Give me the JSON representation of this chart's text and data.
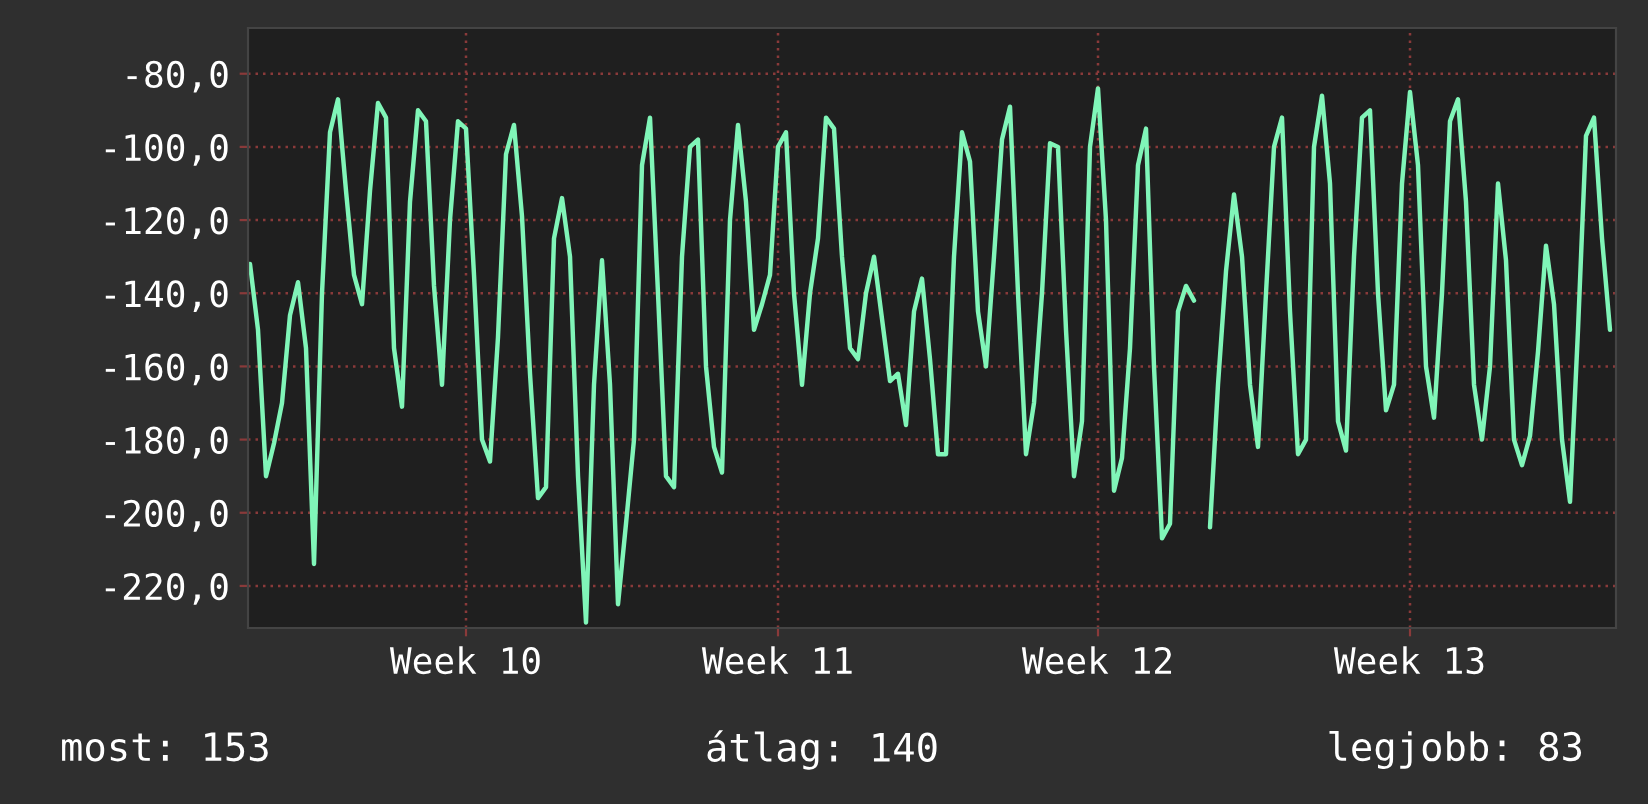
{
  "chart_data": {
    "type": "line",
    "categories": [
      null,
      null,
      null,
      null,
      null,
      null,
      null,
      null,
      null,
      null,
      null,
      null,
      null,
      null,
      null,
      null,
      null,
      null,
      null,
      null,
      null,
      null,
      null,
      null,
      null,
      null,
      null,
      "Week 10",
      null,
      null,
      null,
      null,
      null,
      null,
      null,
      null,
      null,
      null,
      null,
      null,
      null,
      null,
      null,
      null,
      null,
      null,
      null,
      null,
      null,
      null,
      null,
      null,
      null,
      null,
      null,
      null,
      null,
      null,
      null,
      null,
      null,
      null,
      null,
      null,
      null,
      null,
      "Week 11",
      null,
      null,
      null,
      null,
      null,
      null,
      null,
      null,
      null,
      null,
      null,
      null,
      null,
      null,
      null,
      null,
      null,
      null,
      null,
      null,
      null,
      null,
      null,
      null,
      null,
      null,
      null,
      null,
      null,
      null,
      null,
      null,
      null,
      null,
      null,
      null,
      null,
      null,
      null,
      "Week 12",
      null,
      null,
      null,
      null,
      null,
      null,
      null,
      null,
      null,
      null,
      null,
      null,
      null,
      null,
      null,
      null,
      null,
      null,
      null,
      null,
      null,
      null,
      null,
      null,
      null,
      null,
      null,
      null,
      null,
      null,
      null,
      null,
      null,
      null,
      null,
      null,
      null,
      null,
      "Week 13",
      null,
      null,
      null,
      null,
      null,
      null,
      null,
      null,
      null,
      null,
      null,
      null,
      null,
      null,
      null,
      null,
      null,
      null,
      null,
      null,
      null,
      null,
      null,
      null,
      null
    ],
    "series": [
      {
        "color": "#80f5b8",
        "values": [
          -132,
          -150,
          -190,
          -181,
          -170,
          -146,
          -137,
          -155,
          -214,
          -140,
          -96,
          -87,
          -112,
          -135,
          -143,
          -112,
          -88,
          -92,
          -155,
          -171,
          -115,
          -90,
          -93,
          -138,
          -165,
          -120,
          -93,
          -95,
          -135,
          -180,
          -186,
          -152,
          -102,
          -94,
          -119,
          -162,
          -196,
          -193,
          -125,
          -114,
          -130,
          -190,
          -230,
          -165,
          -131,
          -165,
          -225,
          -203,
          -180,
          -105,
          -92,
          -140,
          -190,
          -193,
          -130,
          -100,
          -98,
          -160,
          -182,
          -189,
          -120,
          -94,
          -115,
          -150,
          -143,
          -135,
          -100,
          -96,
          -140,
          -165,
          -140,
          -125,
          -92,
          -95,
          -130,
          -155,
          -158,
          -140,
          -130,
          -147,
          -164,
          -162,
          -176,
          -145,
          -136,
          -158,
          -184,
          -184,
          -130,
          -96,
          -104,
          -145,
          -160,
          -130,
          -98,
          -89,
          -140,
          -184,
          -170,
          -140,
          -99,
          -100,
          -150,
          -190,
          -175,
          -100,
          -84,
          -120,
          -194,
          -185,
          -155,
          -105,
          -95,
          -160,
          -207,
          -203,
          -145,
          -138,
          -142,
          null,
          -204,
          -165,
          -134,
          -113,
          -130,
          -165,
          -182,
          -140,
          -100,
          -92,
          -145,
          -184,
          -180,
          -100,
          -86,
          -110,
          -175,
          -183,
          -130,
          -92,
          -90,
          -140,
          -172,
          -165,
          -110,
          -85,
          -105,
          -160,
          -174,
          -140,
          -93,
          -87,
          -115,
          -165,
          -180,
          -160,
          -110,
          -131,
          -180,
          -187,
          -179,
          -156,
          -127,
          -143,
          -180,
          -197,
          -150,
          -97,
          -92,
          -125,
          -150
        ]
      }
    ],
    "ylim": [
      -231.5,
      -67.5
    ],
    "yticks": [
      {
        "value": -220,
        "label": "-220,0"
      },
      {
        "value": -200,
        "label": "-200,0"
      },
      {
        "value": -180,
        "label": "-180,0"
      },
      {
        "value": -160,
        "label": "-160,0"
      },
      {
        "value": -140,
        "label": "-140,0"
      },
      {
        "value": -120,
        "label": "-120,0"
      },
      {
        "value": -100,
        "label": "-100,0"
      },
      {
        "value": -80,
        "label": "-80,0"
      }
    ],
    "grid": true,
    "annotations": [
      "most: 153",
      "átlag: 140",
      "legjobb: 83"
    ]
  }
}
